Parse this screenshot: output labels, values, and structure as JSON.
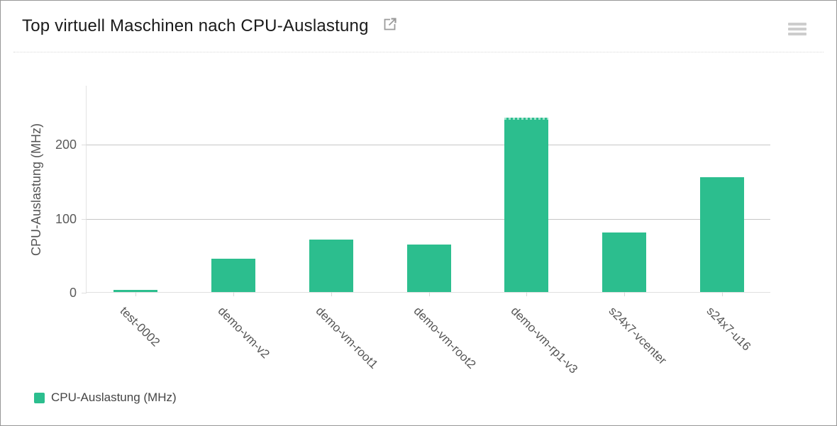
{
  "header": {
    "title": "Top virtuell Maschinen nach CPU-Auslastung",
    "icons": {
      "expand": "open-in-new-window",
      "menu": "hamburger-menu"
    }
  },
  "colors": {
    "bar": "#2cbe8e",
    "gridline": "#c6c6c6",
    "axis_line": "#e0e0e0",
    "axis_text": "#5b5b5b",
    "title_text": "#1a1a1a",
    "card_border": "#979797",
    "menu_icon": "#cdcdcd"
  },
  "chart_data": {
    "type": "bar",
    "title": "Top virtuell Maschinen nach CPU-Auslastung",
    "categories": [
      "test-0002",
      "demo-vm-v2",
      "demo-vm-root1",
      "demo-vm-root2",
      "demo-vm-rp1-v3",
      "s24x7-vcenter",
      "s24x7-u16"
    ],
    "series": [
      {
        "name": "CPU-Auslastung (MHz)",
        "values": [
          3,
          45,
          71,
          64,
          236,
          81,
          155
        ]
      }
    ],
    "xlabel": "",
    "ylabel": "CPU-Auslastung (MHz)",
    "yticks": [
      0,
      100,
      200
    ],
    "ylim": [
      0,
      280
    ],
    "grid": true,
    "x_label_rotation": 45,
    "legend_position": "bottom-left",
    "bar_color": "#2cbe8e"
  },
  "legend": {
    "items": [
      {
        "label": "CPU-Auslastung (MHz)",
        "color": "#2cbe8e"
      }
    ]
  }
}
